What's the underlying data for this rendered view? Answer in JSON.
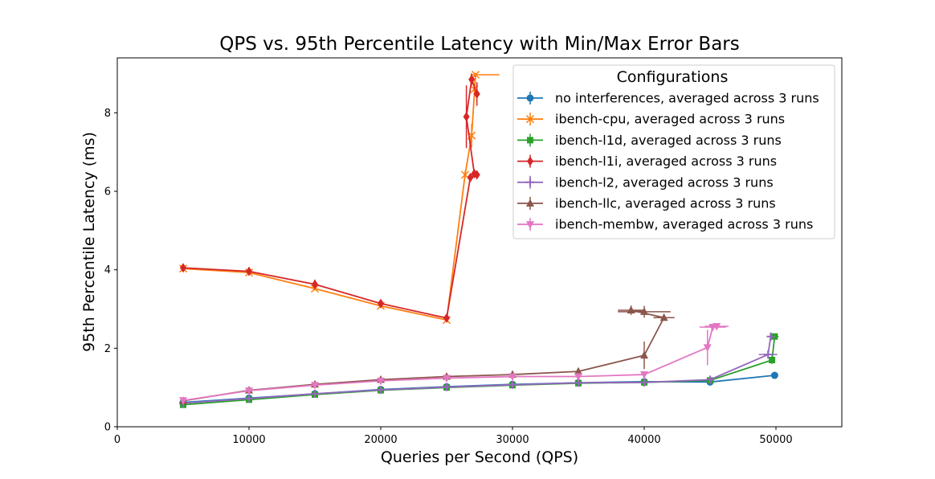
{
  "chart_data": {
    "type": "line",
    "title": "QPS vs. 95th Percentile Latency with Min/Max Error Bars",
    "xlabel": "Queries per Second (QPS)",
    "ylabel": "95th Percentile Latency (ms)",
    "xlim": [
      0,
      55000
    ],
    "ylim": [
      0,
      9.4
    ],
    "xticks": [
      0,
      10000,
      20000,
      30000,
      40000,
      50000
    ],
    "yticks": [
      0,
      2,
      4,
      6,
      8
    ],
    "legend_title": "Configurations",
    "legend_position": "top-right",
    "error_bars": "min/max",
    "series": [
      {
        "name": "no interferences, averaged across 3 runs",
        "color": "#1f77b4",
        "marker": "circle",
        "points": [
          {
            "x": 5000,
            "y": 0.62,
            "xerr": [
              50,
              50
            ],
            "yerr": [
              0.03,
              0.03
            ]
          },
          {
            "x": 10000,
            "y": 0.73,
            "xerr": [
              50,
              50
            ],
            "yerr": [
              0.03,
              0.03
            ]
          },
          {
            "x": 15000,
            "y": 0.84,
            "xerr": [
              50,
              50
            ],
            "yerr": [
              0.03,
              0.03
            ]
          },
          {
            "x": 20000,
            "y": 0.95,
            "xerr": [
              50,
              50
            ],
            "yerr": [
              0.03,
              0.03
            ]
          },
          {
            "x": 25000,
            "y": 1.02,
            "xerr": [
              50,
              50
            ],
            "yerr": [
              0.03,
              0.03
            ]
          },
          {
            "x": 30000,
            "y": 1.08,
            "xerr": [
              50,
              50
            ],
            "yerr": [
              0.03,
              0.03
            ]
          },
          {
            "x": 35000,
            "y": 1.12,
            "xerr": [
              50,
              50
            ],
            "yerr": [
              0.03,
              0.03
            ]
          },
          {
            "x": 40000,
            "y": 1.15,
            "xerr": [
              50,
              50
            ],
            "yerr": [
              0.03,
              0.03
            ]
          },
          {
            "x": 45000,
            "y": 1.14,
            "xerr": [
              100,
              100
            ],
            "yerr": [
              0.04,
              0.04
            ]
          },
          {
            "x": 49900,
            "y": 1.31,
            "xerr": [
              100,
              100
            ],
            "yerr": [
              0.05,
              0.05
            ]
          }
        ]
      },
      {
        "name": "ibench-cpu, averaged across 3 runs",
        "color": "#ff7f0e",
        "marker": "x",
        "points": [
          {
            "x": 5000,
            "y": 4.03,
            "xerr": [
              50,
              50
            ],
            "yerr": [
              0.05,
              0.05
            ]
          },
          {
            "x": 10000,
            "y": 3.93,
            "xerr": [
              50,
              50
            ],
            "yerr": [
              0.05,
              0.05
            ]
          },
          {
            "x": 15000,
            "y": 3.52,
            "xerr": [
              50,
              50
            ],
            "yerr": [
              0.05,
              0.05
            ]
          },
          {
            "x": 20000,
            "y": 3.08,
            "xerr": [
              50,
              50
            ],
            "yerr": [
              0.05,
              0.05
            ]
          },
          {
            "x": 25000,
            "y": 2.72,
            "xerr": [
              50,
              50
            ],
            "yerr": [
              0.05,
              0.05
            ]
          },
          {
            "x": 26400,
            "y": 6.42,
            "xerr": [
              100,
              100
            ],
            "yerr": [
              0.1,
              0.1
            ]
          },
          {
            "x": 26900,
            "y": 7.42,
            "xerr": [
              100,
              100
            ],
            "yerr": [
              0.3,
              0.3
            ]
          },
          {
            "x": 27200,
            "y": 8.97,
            "xerr": [
              400,
              1800
            ],
            "yerr": [
              0.05,
              0.05
            ]
          },
          {
            "x": 27100,
            "y": 8.6,
            "xerr": [
              100,
              100
            ],
            "yerr": [
              0.15,
              0.15
            ]
          }
        ]
      },
      {
        "name": "ibench-l1d, averaged across 3 runs",
        "color": "#2ca02c",
        "marker": "square",
        "points": [
          {
            "x": 5000,
            "y": 0.56,
            "xerr": [
              50,
              50
            ],
            "yerr": [
              0.03,
              0.03
            ]
          },
          {
            "x": 10000,
            "y": 0.69,
            "xerr": [
              50,
              50
            ],
            "yerr": [
              0.03,
              0.03
            ]
          },
          {
            "x": 15000,
            "y": 0.82,
            "xerr": [
              50,
              50
            ],
            "yerr": [
              0.03,
              0.03
            ]
          },
          {
            "x": 20000,
            "y": 0.93,
            "xerr": [
              50,
              50
            ],
            "yerr": [
              0.03,
              0.03
            ]
          },
          {
            "x": 25000,
            "y": 1.0,
            "xerr": [
              50,
              50
            ],
            "yerr": [
              0.03,
              0.03
            ]
          },
          {
            "x": 30000,
            "y": 1.06,
            "xerr": [
              50,
              50
            ],
            "yerr": [
              0.03,
              0.03
            ]
          },
          {
            "x": 35000,
            "y": 1.11,
            "xerr": [
              50,
              50
            ],
            "yerr": [
              0.03,
              0.03
            ]
          },
          {
            "x": 40000,
            "y": 1.13,
            "xerr": [
              50,
              50
            ],
            "yerr": [
              0.03,
              0.03
            ]
          },
          {
            "x": 45000,
            "y": 1.18,
            "xerr": [
              50,
              50
            ],
            "yerr": [
              0.03,
              0.03
            ]
          },
          {
            "x": 49700,
            "y": 1.7,
            "xerr": [
              100,
              100
            ],
            "yerr": [
              0.1,
              0.1
            ]
          },
          {
            "x": 49900,
            "y": 2.3,
            "xerr": [
              300,
              300
            ],
            "yerr": [
              0.05,
              0.05
            ]
          }
        ]
      },
      {
        "name": "ibench-l1i, averaged across 3 runs",
        "color": "#d62728",
        "marker": "diamond",
        "points": [
          {
            "x": 5000,
            "y": 4.05,
            "xerr": [
              50,
              50
            ],
            "yerr": [
              0.08,
              0.08
            ]
          },
          {
            "x": 10000,
            "y": 3.96,
            "xerr": [
              50,
              50
            ],
            "yerr": [
              0.06,
              0.06
            ]
          },
          {
            "x": 15000,
            "y": 3.63,
            "xerr": [
              50,
              50
            ],
            "yerr": [
              0.12,
              0.12
            ]
          },
          {
            "x": 20000,
            "y": 3.14,
            "xerr": [
              50,
              50
            ],
            "yerr": [
              0.08,
              0.08
            ]
          },
          {
            "x": 25000,
            "y": 2.77,
            "xerr": [
              50,
              50
            ],
            "yerr": [
              0.05,
              0.05
            ]
          },
          {
            "x": 26800,
            "y": 6.35,
            "xerr": [
              100,
              100
            ],
            "yerr": [
              0.05,
              0.05
            ]
          },
          {
            "x": 27300,
            "y": 6.42,
            "xerr": [
              100,
              100
            ],
            "yerr": [
              0.05,
              0.05
            ]
          },
          {
            "x": 27100,
            "y": 6.45,
            "xerr": [
              100,
              100
            ],
            "yerr": [
              0.05,
              0.05
            ]
          },
          {
            "x": 26500,
            "y": 7.9,
            "xerr": [
              50,
              50
            ],
            "yerr": [
              0.8,
              0.8
            ]
          },
          {
            "x": 26900,
            "y": 8.85,
            "xerr": [
              100,
              100
            ],
            "yerr": [
              0.15,
              0.15
            ]
          },
          {
            "x": 27300,
            "y": 8.48,
            "xerr": [
              100,
              100
            ],
            "yerr": [
              0.3,
              0.3
            ]
          }
        ]
      },
      {
        "name": "ibench-l2, averaged across 3 runs",
        "color": "#9467bd",
        "marker": "plus",
        "points": [
          {
            "x": 5000,
            "y": 0.6,
            "xerr": [
              50,
              50
            ],
            "yerr": [
              0.03,
              0.03
            ]
          },
          {
            "x": 10000,
            "y": 0.72,
            "xerr": [
              50,
              50
            ],
            "yerr": [
              0.03,
              0.03
            ]
          },
          {
            "x": 15000,
            "y": 0.84,
            "xerr": [
              50,
              50
            ],
            "yerr": [
              0.03,
              0.03
            ]
          },
          {
            "x": 20000,
            "y": 0.94,
            "xerr": [
              50,
              50
            ],
            "yerr": [
              0.03,
              0.03
            ]
          },
          {
            "x": 25000,
            "y": 1.01,
            "xerr": [
              50,
              50
            ],
            "yerr": [
              0.03,
              0.03
            ]
          },
          {
            "x": 30000,
            "y": 1.07,
            "xerr": [
              50,
              50
            ],
            "yerr": [
              0.03,
              0.03
            ]
          },
          {
            "x": 35000,
            "y": 1.12,
            "xerr": [
              50,
              50
            ],
            "yerr": [
              0.03,
              0.03
            ]
          },
          {
            "x": 40000,
            "y": 1.13,
            "xerr": [
              50,
              50
            ],
            "yerr": [
              0.03,
              0.03
            ]
          },
          {
            "x": 45000,
            "y": 1.2,
            "xerr": [
              50,
              50
            ],
            "yerr": [
              0.03,
              0.03
            ]
          },
          {
            "x": 49400,
            "y": 1.84,
            "xerr": [
              700,
              700
            ],
            "yerr": [
              0.05,
              0.05
            ]
          },
          {
            "x": 49600,
            "y": 2.3,
            "xerr": [
              300,
              300
            ],
            "yerr": [
              0.05,
              0.05
            ]
          }
        ]
      },
      {
        "name": "ibench-llc, averaged across 3 runs",
        "color": "#8c564b",
        "marker": "triangle-up",
        "points": [
          {
            "x": 5000,
            "y": 0.66,
            "xerr": [
              50,
              50
            ],
            "yerr": [
              0.03,
              0.03
            ]
          },
          {
            "x": 10000,
            "y": 0.93,
            "xerr": [
              50,
              50
            ],
            "yerr": [
              0.03,
              0.03
            ]
          },
          {
            "x": 15000,
            "y": 1.08,
            "xerr": [
              50,
              50
            ],
            "yerr": [
              0.03,
              0.03
            ]
          },
          {
            "x": 20000,
            "y": 1.2,
            "xerr": [
              50,
              50
            ],
            "yerr": [
              0.03,
              0.03
            ]
          },
          {
            "x": 25000,
            "y": 1.28,
            "xerr": [
              50,
              50
            ],
            "yerr": [
              0.03,
              0.03
            ]
          },
          {
            "x": 30000,
            "y": 1.33,
            "xerr": [
              50,
              50
            ],
            "yerr": [
              0.03,
              0.03
            ]
          },
          {
            "x": 35000,
            "y": 1.41,
            "xerr": [
              50,
              50
            ],
            "yerr": [
              0.03,
              0.03
            ]
          },
          {
            "x": 40000,
            "y": 1.82,
            "xerr": [
              100,
              100
            ],
            "yerr": [
              0.35,
              0.35
            ]
          },
          {
            "x": 41500,
            "y": 2.78,
            "xerr": [
              800,
              800
            ],
            "yerr": [
              0.05,
              0.05
            ]
          },
          {
            "x": 39000,
            "y": 2.97,
            "xerr": [
              1000,
              1000
            ],
            "yerr": [
              0.12,
              0.12
            ]
          },
          {
            "x": 40000,
            "y": 2.93,
            "xerr": [
              2000,
              2000
            ],
            "yerr": [
              0.15,
              0.15
            ]
          }
        ]
      },
      {
        "name": "ibench-membw, averaged across 3 runs",
        "color": "#e377c2",
        "marker": "triangle-down",
        "points": [
          {
            "x": 5000,
            "y": 0.67,
            "xerr": [
              50,
              50
            ],
            "yerr": [
              0.03,
              0.03
            ]
          },
          {
            "x": 10000,
            "y": 0.92,
            "xerr": [
              50,
              50
            ],
            "yerr": [
              0.03,
              0.03
            ]
          },
          {
            "x": 15000,
            "y": 1.06,
            "xerr": [
              50,
              50
            ],
            "yerr": [
              0.03,
              0.03
            ]
          },
          {
            "x": 20000,
            "y": 1.17,
            "xerr": [
              50,
              50
            ],
            "yerr": [
              0.03,
              0.03
            ]
          },
          {
            "x": 25000,
            "y": 1.24,
            "xerr": [
              50,
              50
            ],
            "yerr": [
              0.03,
              0.03
            ]
          },
          {
            "x": 30000,
            "y": 1.28,
            "xerr": [
              50,
              50
            ],
            "yerr": [
              0.03,
              0.03
            ]
          },
          {
            "x": 35000,
            "y": 1.28,
            "xerr": [
              50,
              50
            ],
            "yerr": [
              0.03,
              0.03
            ]
          },
          {
            "x": 40000,
            "y": 1.33,
            "xerr": [
              50,
              50
            ],
            "yerr": [
              0.03,
              0.03
            ]
          },
          {
            "x": 44800,
            "y": 2.02,
            "xerr": [
              100,
              100
            ],
            "yerr": [
              0.45,
              0.45
            ]
          },
          {
            "x": 45200,
            "y": 2.54,
            "xerr": [
              1000,
              1000
            ],
            "yerr": [
              0.05,
              0.05
            ]
          },
          {
            "x": 45500,
            "y": 2.56,
            "xerr": [
              900,
              900
            ],
            "yerr": [
              0.05,
              0.05
            ]
          }
        ]
      }
    ]
  }
}
